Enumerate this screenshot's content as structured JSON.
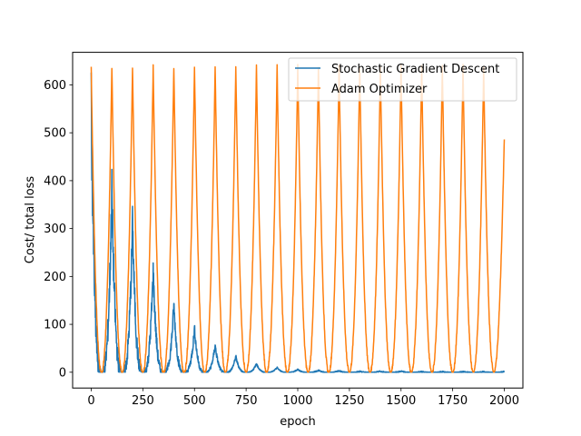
{
  "chart_data": {
    "type": "line",
    "title": "",
    "xlabel": "epoch",
    "ylabel": "Cost/ total loss",
    "xlim": [
      -90,
      2090
    ],
    "ylim": [
      -33,
      668
    ],
    "xticks": [
      "0",
      "250",
      "500",
      "750",
      "1000",
      "1250",
      "1500",
      "1750",
      "2000"
    ],
    "xtick_values": [
      0,
      250,
      500,
      750,
      1000,
      1250,
      1500,
      1750,
      2000
    ],
    "yticks": [
      "0",
      "100",
      "200",
      "300",
      "400",
      "500",
      "600"
    ],
    "ytick_values": [
      0,
      100,
      200,
      300,
      400,
      500,
      600
    ],
    "grid": false,
    "legend_position": "top-right",
    "series": [
      {
        "name": "Stochastic Gradient Descent",
        "color": "#1f77b4",
        "period": 100,
        "peaks": [
          {
            "epoch": 0,
            "value": 560
          },
          {
            "epoch": 100,
            "value": 382
          },
          {
            "epoch": 200,
            "value": 310
          },
          {
            "epoch": 300,
            "value": 212
          },
          {
            "epoch": 400,
            "value": 141
          },
          {
            "epoch": 500,
            "value": 92
          },
          {
            "epoch": 600,
            "value": 57
          },
          {
            "epoch": 700,
            "value": 33
          },
          {
            "epoch": 800,
            "value": 18
          },
          {
            "epoch": 900,
            "value": 10
          },
          {
            "epoch": 1000,
            "value": 6
          },
          {
            "epoch": 1100,
            "value": 4
          },
          {
            "epoch": 1200,
            "value": 3
          },
          {
            "epoch": 1300,
            "value": 2
          },
          {
            "epoch": 1400,
            "value": 2
          },
          {
            "epoch": 1500,
            "value": 2
          },
          {
            "epoch": 1600,
            "value": 1
          },
          {
            "epoch": 1700,
            "value": 1
          },
          {
            "epoch": 1800,
            "value": 1
          },
          {
            "epoch": 1900,
            "value": 1
          },
          {
            "epoch": 2000,
            "value": 1
          }
        ],
        "min_value": 0
      },
      {
        "name": "Adam Optimizer",
        "color": "#ff7f0e",
        "period": 100,
        "peak_value": 638,
        "min_value": 0,
        "peak_epochs": [
          0,
          100,
          200,
          300,
          400,
          500,
          600,
          700,
          800,
          900,
          1000,
          1100,
          1200,
          1300,
          1400,
          1500,
          1600,
          1700,
          1800,
          1900
        ],
        "final": {
          "epoch": 2000,
          "value": 490
        }
      }
    ]
  }
}
